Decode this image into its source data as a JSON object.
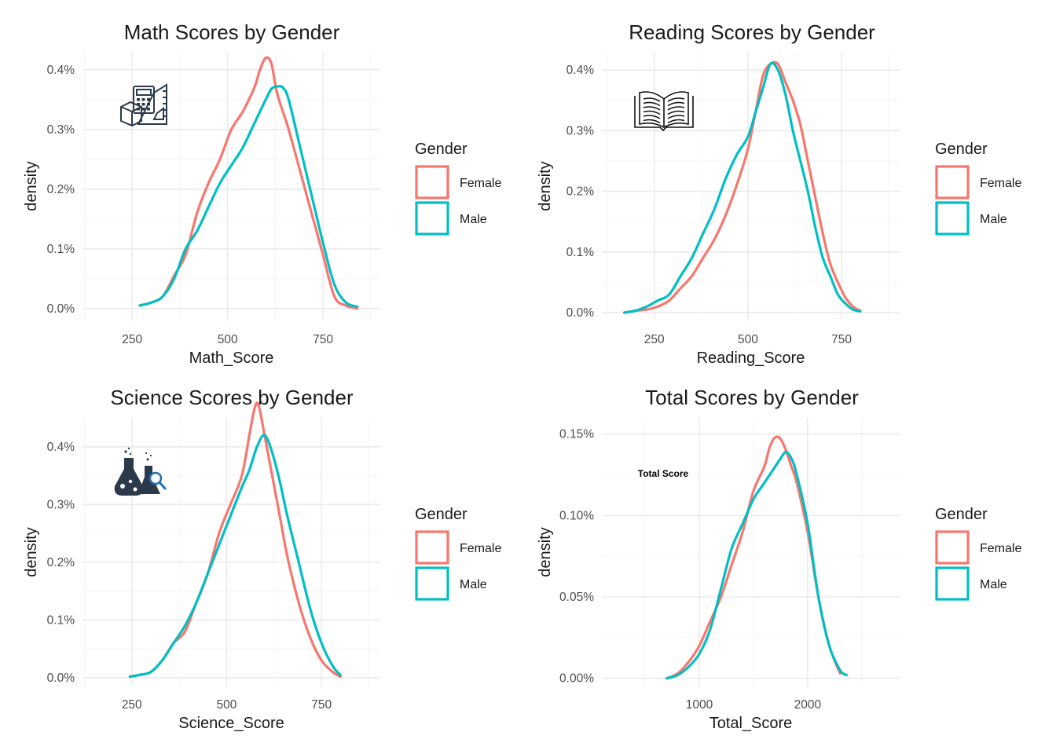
{
  "colors": {
    "female": "#F8766D",
    "male": "#00BFC4",
    "grid_major": "#EBEBEB",
    "grid_minor": "#F5F5F5",
    "icon": "#2b3a4a",
    "icon_accent": "#1f6fb5"
  },
  "chart_data": [
    {
      "type": "line",
      "title": "Math Scores by Gender",
      "xlabel": "Math_Score",
      "ylabel": "density",
      "xlim": [
        120,
        900
      ],
      "ylim": [
        -0.0002,
        0.0043
      ],
      "xticks": [
        250,
        500,
        750
      ],
      "xtick_labels": [
        "250",
        "500",
        "750"
      ],
      "yticks": [
        0,
        0.001,
        0.002,
        0.003,
        0.004
      ],
      "ytick_labels": [
        "0.0%",
        "0.1%",
        "0.2%",
        "0.3%",
        "0.4%"
      ],
      "grid": true,
      "legend": {
        "title": "Gender",
        "position": "right",
        "entries": [
          "Female",
          "Male"
        ]
      },
      "icon": "calculator-ruler-icon",
      "series": [
        {
          "name": "Female",
          "color_key": "female",
          "x": [
            270,
            300,
            330,
            360,
            390,
            420,
            450,
            480,
            510,
            540,
            570,
            585,
            600,
            615,
            630,
            660,
            690,
            720,
            750,
            780,
            810,
            840
          ],
          "y": [
            5e-05,
            0.0001,
            0.0002,
            0.00055,
            0.0009,
            0.0016,
            0.0021,
            0.0025,
            0.003,
            0.0033,
            0.0037,
            0.004,
            0.0042,
            0.0041,
            0.0036,
            0.003,
            0.0023,
            0.0016,
            0.0009,
            0.0002,
            5e-05,
            0.0
          ]
        },
        {
          "name": "Male",
          "color_key": "male",
          "x": [
            270,
            300,
            330,
            360,
            390,
            420,
            450,
            480,
            510,
            540,
            570,
            600,
            615,
            630,
            645,
            660,
            690,
            720,
            750,
            780,
            810,
            840
          ],
          "y": [
            5e-05,
            0.0001,
            0.0002,
            0.0005,
            0.001,
            0.0013,
            0.0017,
            0.0021,
            0.0024,
            0.0027,
            0.0031,
            0.0035,
            0.00368,
            0.00372,
            0.0037,
            0.0035,
            0.0027,
            0.0019,
            0.0011,
            0.0004,
            0.0001,
            3e-05
          ]
        }
      ]
    },
    {
      "type": "line",
      "title": "Reading Scores by Gender",
      "xlabel": "Reading_Score",
      "ylabel": "density",
      "xlim": [
        110,
        905
      ],
      "ylim": [
        -0.00013,
        0.0043
      ],
      "xticks": [
        250,
        500,
        750
      ],
      "xtick_labels": [
        "250",
        "500",
        "750"
      ],
      "yticks": [
        0,
        0.001,
        0.002,
        0.003,
        0.004
      ],
      "ytick_labels": [
        "0.0%",
        "0.1%",
        "0.2%",
        "0.3%",
        "0.4%"
      ],
      "grid": true,
      "legend": {
        "title": "Gender",
        "position": "right",
        "entries": [
          "Female",
          "Male"
        ]
      },
      "icon": "book-icon",
      "series": [
        {
          "name": "Female",
          "color_key": "female",
          "x": [
            170,
            200,
            230,
            260,
            290,
            320,
            350,
            380,
            410,
            440,
            470,
            500,
            520,
            540,
            560,
            580,
            600,
            620,
            640,
            660,
            680,
            700,
            720,
            740,
            760,
            780,
            800
          ],
          "y": [
            0.0,
            3e-05,
            5e-05,
            0.0001,
            0.0002,
            0.0004,
            0.0006,
            0.0009,
            0.0012,
            0.0016,
            0.0021,
            0.0027,
            0.0033,
            0.0039,
            0.0041,
            0.0041,
            0.0038,
            0.0035,
            0.0031,
            0.0025,
            0.0019,
            0.0013,
            0.0008,
            0.0005,
            0.00025,
            0.0001,
            3e-05
          ]
        },
        {
          "name": "Male",
          "color_key": "male",
          "x": [
            170,
            200,
            230,
            260,
            290,
            320,
            350,
            380,
            410,
            440,
            470,
            500,
            520,
            540,
            560,
            580,
            600,
            620,
            640,
            660,
            680,
            700,
            720,
            740,
            760,
            780,
            800
          ],
          "y": [
            0.0,
            3e-05,
            0.0001,
            0.0002,
            0.0003,
            0.0006,
            0.0009,
            0.0013,
            0.0017,
            0.0022,
            0.0026,
            0.0029,
            0.0033,
            0.0037,
            0.0041,
            0.004,
            0.0036,
            0.003,
            0.0025,
            0.002,
            0.0014,
            0.0009,
            0.0006,
            0.0003,
            0.00015,
            5e-05,
            2e-05
          ]
        }
      ]
    },
    {
      "type": "line",
      "title": "Science Scores by Gender",
      "xlabel": "Science_Score",
      "ylabel": "density",
      "xlim": [
        120,
        905
      ],
      "ylim": [
        -0.00015,
        0.0045
      ],
      "xticks": [
        250,
        500,
        750
      ],
      "xtick_labels": [
        "250",
        "500",
        "750"
      ],
      "yticks": [
        0,
        0.001,
        0.002,
        0.003,
        0.004
      ],
      "ytick_labels": [
        "0.0%",
        "0.1%",
        "0.2%",
        "0.3%",
        "0.4%"
      ],
      "grid": true,
      "legend": {
        "title": "Gender",
        "position": "right",
        "entries": [
          "Female",
          "Male"
        ]
      },
      "icon": "lab-flasks-icon",
      "series": [
        {
          "name": "Female",
          "color_key": "female",
          "x": [
            245,
            270,
            300,
            330,
            360,
            390,
            420,
            450,
            480,
            510,
            540,
            560,
            575,
            585,
            600,
            620,
            640,
            660,
            690,
            720,
            750,
            780,
            800
          ],
          "y": [
            2e-05,
            5e-05,
            0.0001,
            0.0003,
            0.0006,
            0.0008,
            0.0013,
            0.0018,
            0.0025,
            0.003,
            0.0035,
            0.0042,
            0.0047,
            0.0047,
            0.0042,
            0.0035,
            0.0028,
            0.0021,
            0.0013,
            0.0007,
            0.0003,
            0.0001,
            2e-05
          ]
        },
        {
          "name": "Male",
          "color_key": "male",
          "x": [
            245,
            270,
            300,
            330,
            360,
            390,
            420,
            450,
            480,
            510,
            540,
            560,
            580,
            600,
            620,
            640,
            660,
            690,
            720,
            750,
            780,
            800
          ],
          "y": [
            2e-05,
            5e-05,
            0.0001,
            0.0003,
            0.0006,
            0.0009,
            0.0013,
            0.0018,
            0.0023,
            0.0028,
            0.0033,
            0.0036,
            0.004,
            0.0042,
            0.0039,
            0.0034,
            0.0028,
            0.002,
            0.0012,
            0.0006,
            0.0002,
            5e-05
          ]
        }
      ]
    },
    {
      "type": "line",
      "title": "Total Scores by Gender",
      "xlabel": "Total_Score",
      "ylabel": "density",
      "xlim": [
        100,
        2850
      ],
      "ylim": [
        -5e-05,
        0.0016
      ],
      "xticks": [
        1000,
        2000
      ],
      "xtick_labels": [
        "1000",
        "2000"
      ],
      "yticks": [
        0,
        0.0005,
        0.001,
        0.0015
      ],
      "ytick_labels": [
        "0.00%",
        "0.05%",
        "0.10%",
        "0.15%"
      ],
      "grid": true,
      "legend": {
        "title": "Gender",
        "position": "right",
        "entries": [
          "Female",
          "Male"
        ]
      },
      "annotation": "Total Score",
      "series": [
        {
          "name": "Female",
          "color_key": "female",
          "x": [
            700,
            800,
            900,
            1000,
            1100,
            1200,
            1300,
            1400,
            1500,
            1600,
            1650,
            1700,
            1750,
            1800,
            1850,
            1900,
            2000,
            2100,
            2200,
            2300
          ],
          "y": [
            0.0,
            3e-05,
            0.0001,
            0.0002,
            0.00035,
            0.0005,
            0.0007,
            0.0009,
            0.00115,
            0.0013,
            0.00142,
            0.00148,
            0.00147,
            0.0014,
            0.0013,
            0.0012,
            0.0009,
            0.0005,
            0.0002,
            3e-05
          ]
        },
        {
          "name": "Male",
          "color_key": "male",
          "x": [
            700,
            800,
            900,
            1000,
            1100,
            1200,
            1300,
            1400,
            1500,
            1600,
            1700,
            1750,
            1800,
            1850,
            1900,
            2000,
            2100,
            2200,
            2300,
            2360
          ],
          "y": [
            0.0,
            2e-05,
            7e-05,
            0.00015,
            0.0003,
            0.00055,
            0.0008,
            0.00095,
            0.0011,
            0.0012,
            0.0013,
            0.00135,
            0.00139,
            0.00135,
            0.00125,
            0.00095,
            0.0005,
            0.0002,
            5e-05,
            2e-05
          ]
        }
      ]
    }
  ]
}
